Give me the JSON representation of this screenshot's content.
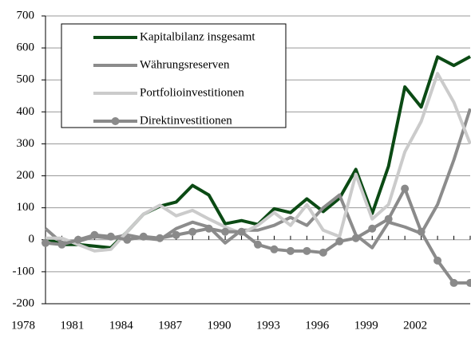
{
  "chart_data": {
    "type": "line",
    "x": [
      1978,
      1979,
      1980,
      1981,
      1982,
      1983,
      1984,
      1985,
      1986,
      1987,
      1988,
      1989,
      1990,
      1991,
      1992,
      1993,
      1994,
      1995,
      1996,
      1997,
      1998,
      1999,
      2000,
      2001,
      2002,
      2003,
      2004
    ],
    "xlim": [
      1978,
      2004
    ],
    "xticks": [
      1978,
      1981,
      1984,
      1987,
      1990,
      1993,
      1996,
      1999,
      2002
    ],
    "ylim": [
      -200,
      700
    ],
    "yticks": [
      -200,
      -100,
      0,
      100,
      200,
      300,
      400,
      500,
      600,
      700
    ],
    "grid": true,
    "legend": "upper left",
    "series": [
      {
        "name": "Kapitalbilanz insgesamt",
        "color": "#0b4a14",
        "marker": false,
        "values": [
          5,
          -15,
          -15,
          -20,
          -25,
          25,
          80,
          105,
          118,
          170,
          140,
          50,
          60,
          48,
          97,
          85,
          128,
          88,
          130,
          220,
          82,
          230,
          478,
          415,
          572,
          545,
          573
        ]
      },
      {
        "name": "Währungsreserven",
        "color": "#8c8c8c",
        "marker": false,
        "values": [
          35,
          -10,
          -5,
          10,
          5,
          15,
          5,
          0,
          35,
          55,
          40,
          -10,
          30,
          30,
          45,
          70,
          45,
          100,
          140,
          15,
          -25,
          55,
          40,
          20,
          110,
          250,
          410
        ]
      },
      {
        "name": "Portfolioinvestitionen",
        "color": "#cbcbcb",
        "marker": false,
        "values": [
          5,
          5,
          -15,
          -35,
          -30,
          25,
          80,
          108,
          75,
          92,
          65,
          40,
          20,
          45,
          85,
          45,
          110,
          30,
          10,
          205,
          65,
          110,
          275,
          370,
          520,
          430,
          300
        ]
      },
      {
        "name": "Direktinvestitionen",
        "color": "#8a8a8a",
        "marker": true,
        "values": [
          -10,
          -15,
          0,
          15,
          10,
          0,
          10,
          5,
          15,
          25,
          35,
          25,
          25,
          -15,
          -30,
          -35,
          -35,
          -40,
          -5,
          5,
          35,
          65,
          160,
          25,
          -65,
          -135,
          -135
        ]
      }
    ]
  }
}
